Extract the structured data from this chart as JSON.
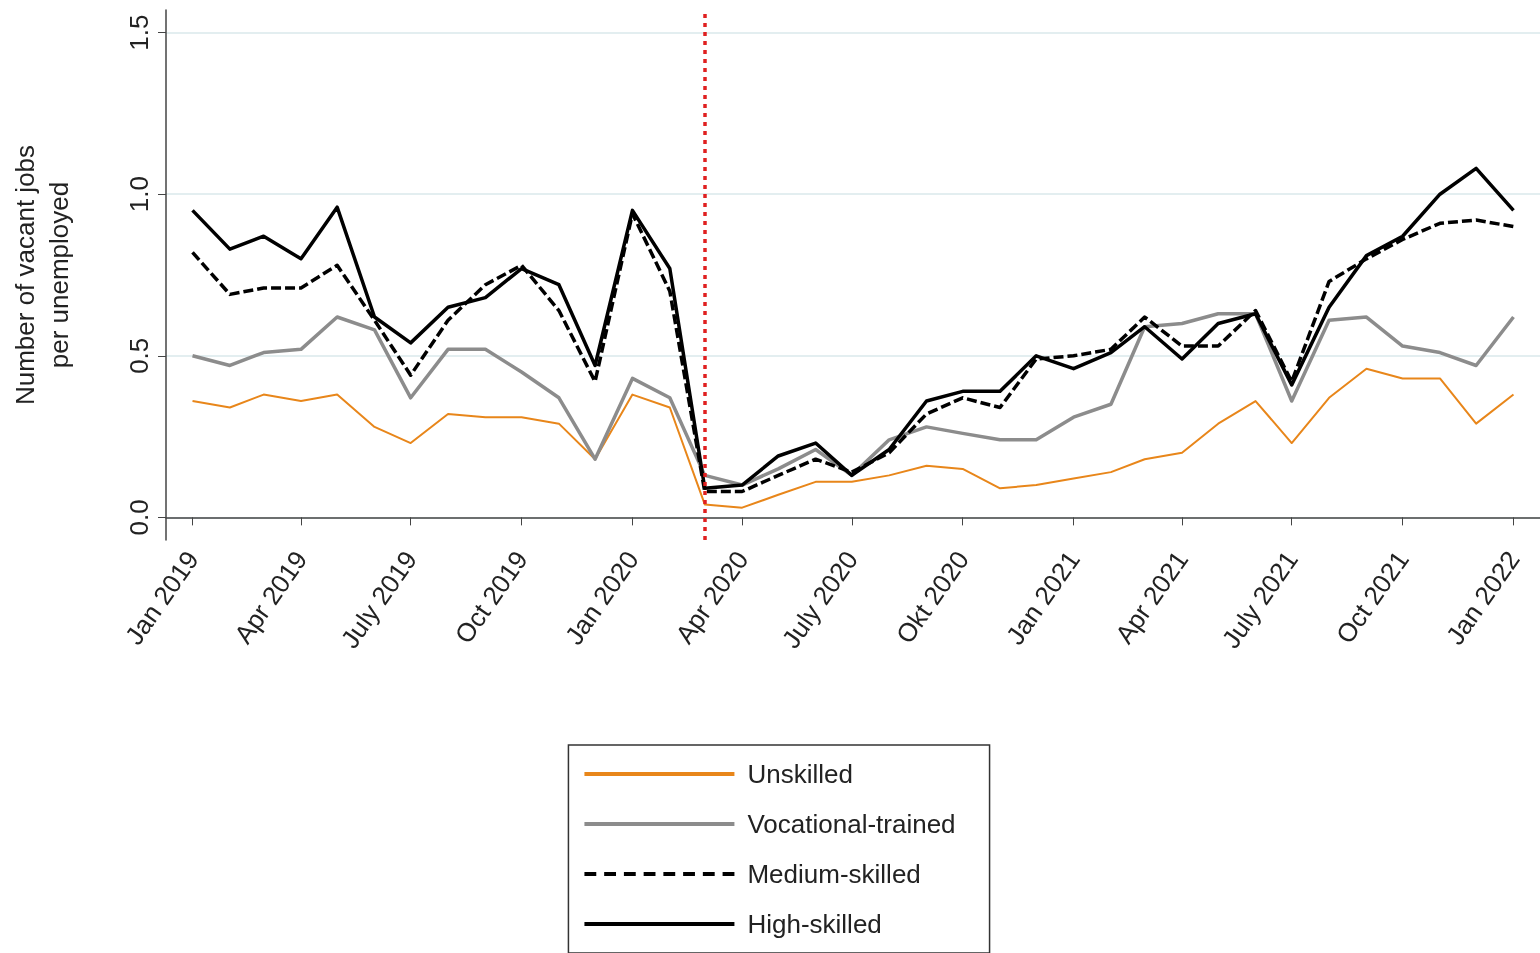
{
  "chart_data": {
    "type": "line",
    "ylabel": "Number of vacant jobs per unemployed",
    "x": [
      "2019-01",
      "2019-02",
      "2019-03",
      "2019-04",
      "2019-05",
      "2019-06",
      "2019-07",
      "2019-08",
      "2019-09",
      "2019-10",
      "2019-11",
      "2019-12",
      "2020-01",
      "2020-02",
      "2020-03",
      "2020-04",
      "2020-05",
      "2020-06",
      "2020-07",
      "2020-08",
      "2020-09",
      "2020-10",
      "2020-11",
      "2020-12",
      "2021-01",
      "2021-02",
      "2021-03",
      "2021-04",
      "2021-05",
      "2021-06",
      "2021-07",
      "2021-08",
      "2021-09",
      "2021-10",
      "2021-11",
      "2021-12",
      "2022-01"
    ],
    "series": [
      {
        "name": "Unskilled",
        "color": "#e8861a",
        "line_style": "solid",
        "values": [
          0.36,
          0.34,
          0.38,
          0.36,
          0.38,
          0.28,
          0.23,
          0.32,
          0.31,
          0.31,
          0.29,
          0.18,
          0.38,
          0.34,
          0.04,
          0.03,
          0.07,
          0.11,
          0.11,
          0.13,
          0.16,
          0.15,
          0.09,
          0.1,
          0.12,
          0.14,
          0.18,
          0.2,
          0.29,
          0.36,
          0.23,
          0.37,
          0.46,
          0.43,
          0.43,
          0.29,
          0.38
        ]
      },
      {
        "name": "Vocational-trained",
        "color": "#8c8c8c",
        "line_style": "solid",
        "values": [
          0.5,
          0.47,
          0.51,
          0.52,
          0.62,
          0.58,
          0.37,
          0.52,
          0.52,
          0.45,
          0.37,
          0.18,
          0.43,
          0.37,
          0.13,
          0.1,
          0.15,
          0.21,
          0.13,
          0.24,
          0.28,
          0.26,
          0.24,
          0.24,
          0.31,
          0.35,
          0.59,
          0.6,
          0.63,
          0.63,
          0.36,
          0.61,
          0.62,
          0.53,
          0.51,
          0.47,
          0.62
        ]
      },
      {
        "name": "Medium-skilled",
        "color": "#000000",
        "line_style": "dashed",
        "values": [
          0.82,
          0.69,
          0.71,
          0.71,
          0.78,
          0.61,
          0.44,
          0.61,
          0.72,
          0.78,
          0.64,
          0.42,
          0.94,
          0.7,
          0.08,
          0.08,
          0.13,
          0.18,
          0.14,
          0.2,
          0.32,
          0.37,
          0.34,
          0.49,
          0.5,
          0.52,
          0.62,
          0.53,
          0.53,
          0.64,
          0.42,
          0.73,
          0.8,
          0.86,
          0.91,
          0.92,
          0.9
        ]
      },
      {
        "name": "High-skilled",
        "color": "#000000",
        "line_style": "solid",
        "values": [
          0.95,
          0.83,
          0.87,
          0.8,
          0.96,
          0.62,
          0.54,
          0.65,
          0.68,
          0.77,
          0.72,
          0.47,
          0.95,
          0.77,
          0.09,
          0.1,
          0.19,
          0.23,
          0.13,
          0.21,
          0.36,
          0.39,
          0.39,
          0.5,
          0.46,
          0.51,
          0.59,
          0.49,
          0.6,
          0.63,
          0.41,
          0.65,
          0.81,
          0.87,
          1.0,
          1.08,
          0.95
        ]
      }
    ],
    "xlim": [
      "2018-12-10",
      "2022-01-23"
    ],
    "xticks": [
      {
        "value": "2019-01",
        "label": "Jan 2019"
      },
      {
        "value": "2019-04",
        "label": "Apr 2019"
      },
      {
        "value": "2019-07",
        "label": "July 2019"
      },
      {
        "value": "2019-10",
        "label": "Oct 2019"
      },
      {
        "value": "2020-01",
        "label": "Jan 2020"
      },
      {
        "value": "2020-04",
        "label": "Apr 2020"
      },
      {
        "value": "2020-07",
        "label": "July 2020"
      },
      {
        "value": "2020-10",
        "label": "Okt 2020"
      },
      {
        "value": "2021-01",
        "label": "Jan 2021"
      },
      {
        "value": "2021-04",
        "label": "Apr 2021"
      },
      {
        "value": "2021-07",
        "label": "July 2021"
      },
      {
        "value": "2021-10",
        "label": "Oct 2021"
      },
      {
        "value": "2022-01",
        "label": "Jan 2022"
      }
    ],
    "ylim": [
      -0.07,
      1.57
    ],
    "yticks": [
      {
        "value": 0,
        "label": "0.0"
      },
      {
        "value": 0.5,
        "label": "0.5"
      },
      {
        "value": 1,
        "label": "1.0"
      },
      {
        "value": 1.5,
        "label": "1.5"
      }
    ],
    "ref_lines": [
      {
        "axis": "x",
        "value": "2020-03",
        "color": "#e02020",
        "line_style": "dotted"
      }
    ],
    "grid": "y",
    "legend": "bottom",
    "marker": "none"
  }
}
